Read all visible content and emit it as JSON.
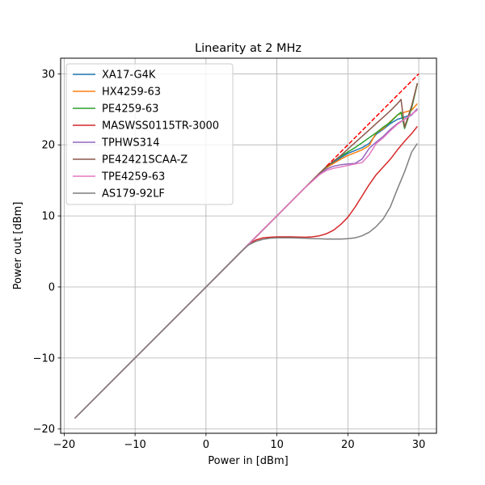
{
  "chart_data": {
    "type": "line",
    "title": "Linearity at 2 MHz",
    "xlabel": "Power in [dBm]",
    "ylabel": "Power out [dBm]",
    "xlim": [
      -20.5,
      32.5
    ],
    "ylim": [
      -20.6,
      32.2
    ],
    "xticks": [
      -20,
      -10,
      0,
      10,
      20,
      30
    ],
    "yticks": [
      -20,
      -10,
      0,
      10,
      20,
      30
    ],
    "xtick_labels": [
      "−20",
      "−10",
      "0",
      "10",
      "20",
      "30"
    ],
    "ytick_labels": [
      "−20",
      "−10",
      "0",
      "10",
      "20",
      "30"
    ],
    "grid": true,
    "legend_position": "top-left",
    "series": [
      {
        "name": "XA17-G4K",
        "color": "#1f77b4",
        "x": [
          -18.5,
          0,
          5,
          6,
          8,
          10,
          12,
          14,
          16,
          17,
          18,
          19,
          20,
          21,
          22,
          23,
          24,
          25,
          26,
          27,
          28,
          29,
          29.8
        ],
        "y": [
          -18.5,
          0,
          5,
          6,
          8,
          10,
          12,
          14,
          16,
          16.8,
          17.5,
          18.2,
          18.8,
          19.2,
          19.6,
          20.2,
          21.5,
          22.2,
          23,
          23.6,
          23.9,
          24.3,
          25
        ]
      },
      {
        "name": "HX4259-63",
        "color": "#ff7f0e",
        "x": [
          -18.5,
          0,
          5,
          6,
          8,
          10,
          12,
          14,
          16,
          17,
          18,
          19,
          20,
          21,
          22,
          23,
          24,
          25,
          26,
          27,
          28,
          29,
          29.8
        ],
        "y": [
          -18.5,
          0,
          5,
          6,
          8,
          10,
          12,
          14,
          16,
          16.8,
          17.4,
          18,
          18.5,
          18.9,
          19.3,
          19.9,
          21.7,
          22.3,
          23.3,
          24.2,
          24.6,
          24.9,
          25.8
        ]
      },
      {
        "name": "PE4259-63",
        "color": "#2ca02c",
        "x": [
          -18.5,
          0,
          5,
          6,
          8,
          10,
          12,
          14,
          16,
          17,
          18,
          19,
          20,
          21,
          22,
          23,
          24,
          25,
          26,
          27,
          27.5,
          28,
          29,
          29.8
        ],
        "y": [
          -18.5,
          0,
          5,
          6,
          8,
          10,
          12,
          14,
          16,
          16.9,
          17.7,
          18.4,
          19,
          19.6,
          20.3,
          21,
          21.7,
          22.5,
          23.2,
          24.2,
          24.6,
          22.3,
          25.2,
          28.6
        ]
      },
      {
        "name": "MASWSS0115TR-3000",
        "color": "#d62728",
        "x": [
          -18.5,
          0,
          5,
          6,
          7,
          8,
          9,
          10,
          11,
          12,
          13,
          14,
          15,
          16,
          17,
          18,
          19,
          20,
          21,
          22,
          23,
          24,
          25,
          26,
          27,
          28,
          29,
          29.8
        ],
        "y": [
          -18.5,
          0,
          5,
          6,
          6.6,
          6.9,
          7,
          7.05,
          7.05,
          7.05,
          7.02,
          7,
          7.05,
          7.2,
          7.5,
          8,
          8.8,
          9.8,
          11.2,
          12.8,
          14.4,
          15.8,
          16.9,
          18,
          19.3,
          20.5,
          21.6,
          22.6
        ]
      },
      {
        "name": "TPHWS314",
        "color": "#9467bd",
        "x": [
          -18.5,
          0,
          5,
          6,
          8,
          10,
          12,
          14,
          16,
          17,
          18,
          19,
          20,
          21,
          22,
          23,
          24,
          25,
          26,
          27,
          28,
          29,
          29.8
        ],
        "y": [
          -18.5,
          0,
          5,
          6,
          8,
          10,
          12,
          14,
          15.8,
          16.6,
          17,
          17.2,
          17.3,
          17.4,
          18,
          19.5,
          20.4,
          21.2,
          22.2,
          23,
          23.6,
          24.2,
          25.1
        ]
      },
      {
        "name": "PE42421SCAA-Z",
        "color": "#8c564b",
        "x": [
          -18.5,
          0,
          5,
          6,
          8,
          10,
          12,
          14,
          16,
          17,
          18,
          19,
          20,
          21,
          22,
          23,
          24,
          25,
          26,
          27,
          27.5,
          28,
          29,
          29.8
        ],
        "y": [
          -18.5,
          0,
          5,
          6,
          8,
          10,
          12,
          14,
          16,
          17,
          17.7,
          18.5,
          19.4,
          20.3,
          21.2,
          22.1,
          23,
          23.9,
          24.8,
          25.8,
          26.4,
          22.5,
          25.5,
          28.7
        ]
      },
      {
        "name": "TPE4259-63",
        "color": "#e377c2",
        "x": [
          -18.5,
          0,
          5,
          6,
          8,
          10,
          12,
          14,
          16,
          17,
          18,
          19,
          20,
          21,
          22,
          23,
          24,
          25,
          26,
          27,
          28,
          29,
          29.8
        ],
        "y": [
          -18.5,
          0,
          5,
          6,
          8,
          10,
          12,
          14,
          15.8,
          16.4,
          16.7,
          16.9,
          17.1,
          17.3,
          17.5,
          18.6,
          20.2,
          21,
          22,
          22.9,
          23.6,
          24.3,
          24.9
        ]
      },
      {
        "name": "AS179-92LF",
        "color": "#7f7f7f",
        "x": [
          -18.5,
          0,
          5,
          6,
          7,
          8,
          9,
          10,
          11,
          12,
          13,
          14,
          15,
          16,
          17,
          18,
          19,
          20,
          21,
          22,
          23,
          24,
          25,
          26,
          27,
          28,
          29,
          29.8
        ],
        "y": [
          -18.5,
          0,
          5,
          5.9,
          6.4,
          6.7,
          6.85,
          6.9,
          6.92,
          6.9,
          6.88,
          6.85,
          6.8,
          6.78,
          6.75,
          6.75,
          6.75,
          6.8,
          6.9,
          7.2,
          7.7,
          8.5,
          9.6,
          11.3,
          13.8,
          16.2,
          19,
          20.2
        ]
      }
    ],
    "reference_line": {
      "color": "#ff0000",
      "dashed": true,
      "x": [
        17,
        30
      ],
      "y": [
        17,
        30
      ]
    }
  }
}
